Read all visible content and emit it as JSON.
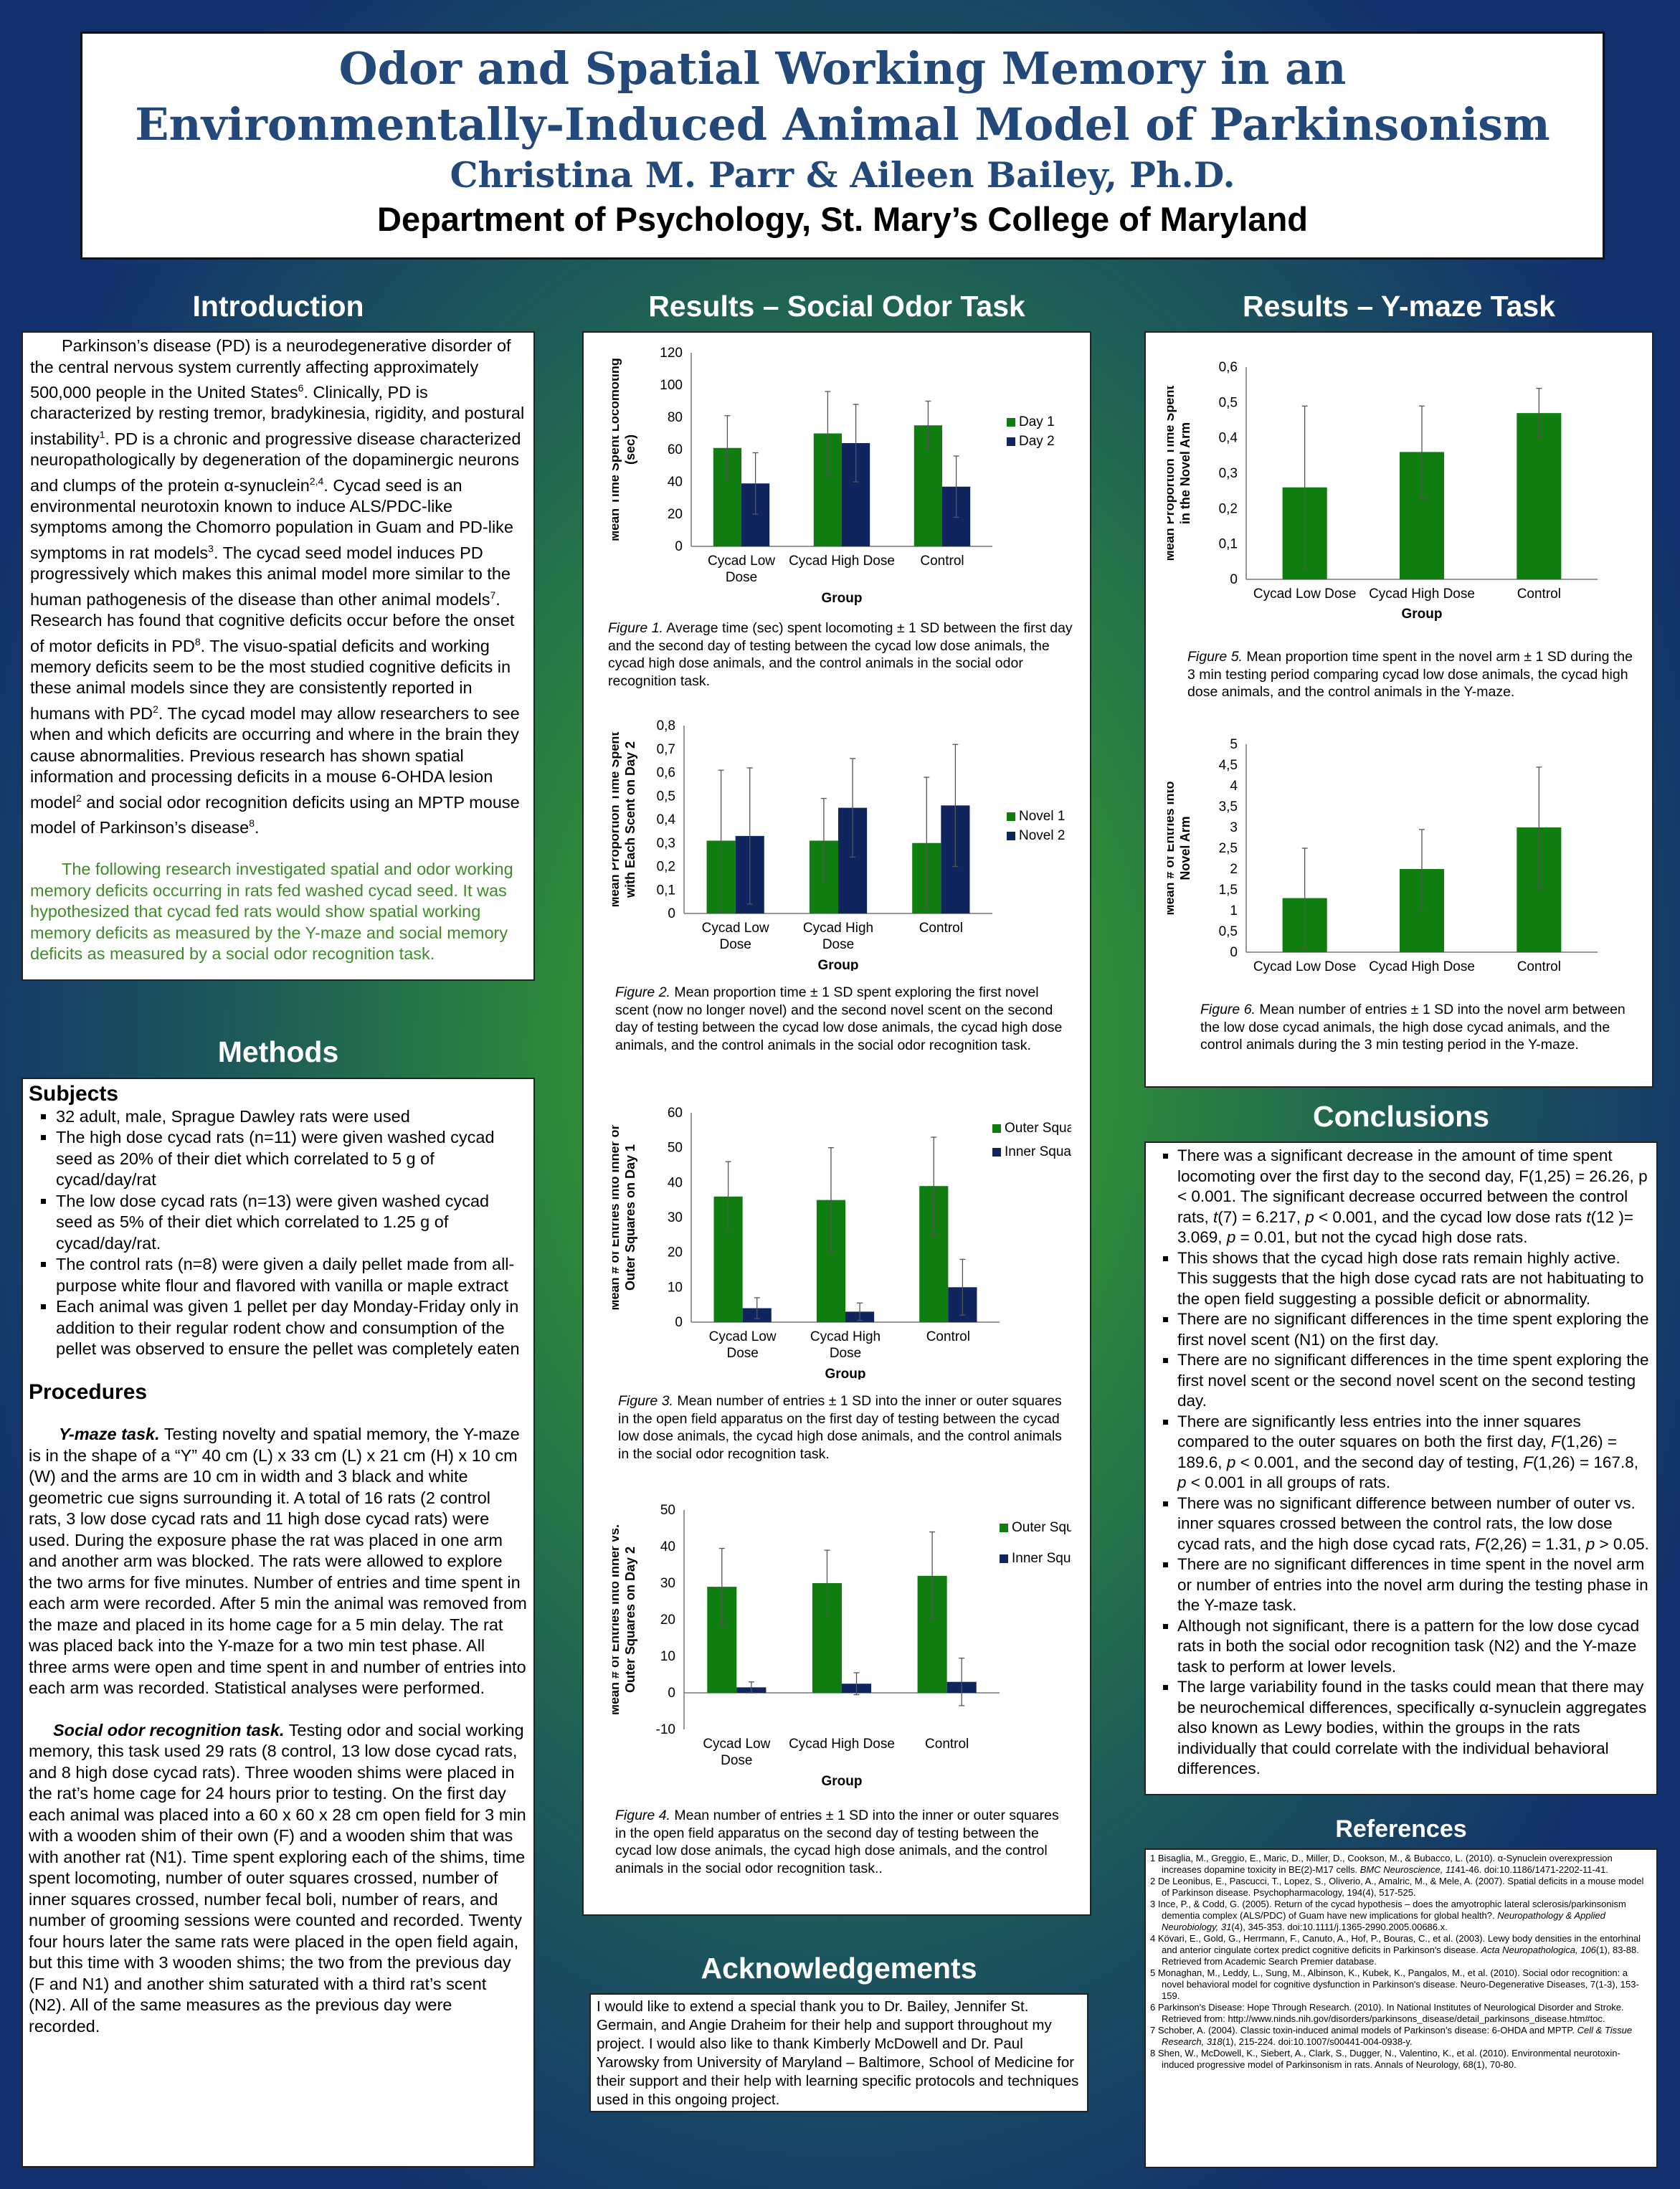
{
  "header": {
    "title_line1": "Odor and Spatial Working Memory in an",
    "title_line2": "Environmentally-Induced Animal Model of Parkinsonism",
    "authors": "Christina M. Parr & Aileen Bailey, Ph.D.",
    "department": "Department of Psychology, St. Mary’s College of Maryland"
  },
  "sections": {
    "introduction": "Introduction",
    "methods": "Methods",
    "results_social": "Results – Social  Odor  Task",
    "results_ymaze": "Results – Y-maze  Task",
    "conclusions": "Conclusions",
    "references": "References",
    "acknowledgements": "Acknowledgements"
  },
  "introduction": {
    "p1_a": "Parkinson’s disease (PD) is a neurodegenerative disorder of the central nervous system currently affecting approximately 500,000 people in the United States",
    "p1_a_sup": "6",
    "p1_b": ".  Clinically, PD is characterized by resting tremor, bradykinesia, rigidity, and postural instability",
    "p1_b_sup": "1",
    "p1_c": ".  PD is a chronic and progressive disease characterized neuropathologically by degeneration of the dopaminergic neurons and clumps of the protein α-synuclein",
    "p1_c_sup": "2,4",
    "p1_d": ".  Cycad seed is an environmental neurotoxin known to induce ALS/PDC-like symptoms among the Chomorro population in Guam and PD-like symptoms in rat models",
    "p1_d_sup": "3",
    "p1_e": ".  The cycad seed model induces PD progressively which makes this animal model more similar to the human pathogenesis of the disease than other animal models",
    "p1_e_sup": "7",
    "p1_f": ".  Research has found that cognitive deficits occur before the onset of motor deficits in PD",
    "p1_f_sup": "8",
    "p1_g": ".  The visuo-spatial deficits and working memory deficits seem to be the most studied cognitive deficits in these animal models since they are consistently reported in humans with PD",
    "p1_g_sup": "2",
    "p1_h": ". The cycad model may allow researchers to see when and which deficits are occurring and where in the brain they cause abnormalities.  Previous research  has shown spatial information and processing deficits in a mouse 6-OHDA lesion model",
    "p1_h_sup": "2",
    "p1_i": " and social odor recognition deficits using an MPTP mouse model of Parkinson’s disease",
    "p1_i_sup": "8",
    "p1_j": ".",
    "p2": "The following research investigated spatial and odor working memory deficits occurring in rats fed washed cycad seed.  It was hypothesized that cycad fed rats would show spatial working memory deficits as measured by the Y-maze and social memory deficits as measured by a social odor recognition task."
  },
  "methods": {
    "subjects_heading": "Subjects",
    "subjects": [
      "32 adult, male, Sprague Dawley rats were used",
      "The high dose cycad rats (n=11) were given washed cycad seed as 20% of their diet which correlated to 5 g of cycad/day/rat",
      "The low dose cycad rats (n=13) were given washed cycad seed as 5% of their diet which correlated to 1.25 g of cycad/day/rat.",
      "The control rats (n=8) were given a daily pellet made from all-purpose white flour and flavored with vanilla or maple extract",
      "Each animal was given 1 pellet per day Monday-Friday only in addition to their regular rodent chow and consumption of the pellet was observed to ensure the pellet was completely eaten"
    ],
    "procedures_heading": "Procedures",
    "ymaze_label": "Y-maze task.",
    "ymaze_text": "  Testing novelty and spatial memory, the Y-maze is in the shape of a “Y” 40 cm (L) x 33 cm (L) x 21 cm (H) x 10 cm (W) and the arms are 10 cm in width and 3 black and white geometric cue signs surrounding it.  A total of 16 rats (2 control rats, 3 low dose cycad rats and 11 high dose cycad rats) were used.  During the exposure phase the rat was placed in one arm and another arm was blocked.  The rats were allowed to explore the two arms for five minutes.  Number of entries and time spent in each arm were recorded.  After 5 min the animal was removed from the maze and placed in its home cage for a 5 min delay. The rat was placed back into the Y-maze for a two min test phase.  All three arms were open and time spent in and number of entries into each arm was recorded.  Statistical analyses were performed.",
    "social_label": "Social odor recognition task.",
    "social_text": "  Testing odor and social working memory, this task used 29 rats (8 control, 13 low dose cycad rats, and 8 high dose cycad rats).  Three wooden shims were placed in the rat’s home cage for 24 hours prior to testing.  On the first day each animal was placed into a 60 x 60 x 28 cm open field for 3 min with a wooden shim of their own (F) and a wooden shim that was with another rat (N1). Time spent exploring each of the shims, time spent locomoting, number of outer squares crossed, number of inner squares crossed, number fecal boli, number of rears, and number of grooming sessions were counted and recorded.  Twenty four hours later the same rats were placed in the open field again, but this time with 3 wooden shims; the two from the previous day (F and N1) and another shim saturated with a third rat’s scent (N2).  All of the same measures as the previous day were recorded."
  },
  "captions": {
    "fig1_label": "Figure 1.",
    "fig1_text": "  Average time (sec) spent locomoting ± 1 SD between the first day and the second day of testing between the cycad low dose animals, the cycad high dose animals, and the control animals in the social odor recognition task.",
    "fig2_label": "Figure 2.",
    "fig2_text": "  Mean proportion time ± 1 SD spent exploring the first novel scent (now no longer novel) and the second novel scent on the second day of testing between the cycad low dose animals, the cycad high dose animals, and the control animals in the social odor recognition task.",
    "fig3_label": "Figure 3.",
    "fig3_text": "  Mean number of entries ± 1 SD into the inner or outer squares in the open field apparatus on the first day of testing between the cycad low dose animals, the cycad high dose animals, and the control animals in the social odor recognition task.",
    "fig4_label": "Figure 4.",
    "fig4_text": "  Mean number of entries ± 1 SD into the inner or outer squares in the open field apparatus on the second day of testing between the cycad low dose animals, the cycad high dose animals, and the control animals in the social odor recognition task..",
    "fig5_label": "Figure 5.",
    "fig5_text": "  Mean proportion time spent in the novel arm ± 1 SD during the 3 min testing period comparing cycad low dose animals, the cycad high dose animals, and the control animals in the Y-maze.",
    "fig6_label": "Figure 6.",
    "fig6_text": "  Mean number of entries ± 1 SD into the novel arm between the low dose cycad animals, the high dose cycad animals, and the control animals during the 3 min testing period in the Y-maze."
  },
  "chart_data": [
    {
      "type": "bar",
      "categories": [
        "Cycad Low Dose",
        "Cycad High Dose",
        "Control"
      ],
      "series": [
        {
          "name": "Day 1",
          "values": [
            61,
            70,
            75
          ],
          "errors": [
            20,
            26,
            15
          ],
          "color": "#0f7d0f"
        },
        {
          "name": "Day 2",
          "values": [
            39,
            64,
            37
          ],
          "errors": [
            19,
            24,
            19
          ],
          "color": "#10255e"
        }
      ],
      "xlabel": "Group",
      "ylabel": "Mean Time Spent Locomoting (sec)",
      "ylim": [
        0,
        120
      ],
      "yticks": [
        0,
        20,
        40,
        60,
        80,
        100,
        120
      ],
      "legend": "right"
    },
    {
      "type": "bar",
      "categories": [
        "Cycad Low Dose",
        "Cycad High Dose",
        "Control"
      ],
      "series": [
        {
          "name": "Novel 1",
          "values": [
            0.31,
            0.31,
            0.3
          ],
          "errors": [
            0.3,
            0.18,
            0.28
          ],
          "color": "#0f7d0f"
        },
        {
          "name": "Novel 2",
          "values": [
            0.33,
            0.45,
            0.46
          ],
          "errors": [
            0.29,
            0.21,
            0.26
          ],
          "color": "#10255e"
        }
      ],
      "xlabel": "Group",
      "ylabel": "Mean Proportion Time Spent with Each Scent on Day 2",
      "ylim": [
        0,
        0.8
      ],
      "yticks": [
        "0",
        "0,1",
        "0,2",
        "0,3",
        "0,4",
        "0,5",
        "0,6",
        "0,7",
        "0,8"
      ],
      "legend": "right"
    },
    {
      "type": "bar",
      "categories": [
        "Cycad Low Dose",
        "Cycad High Dose",
        "Control"
      ],
      "series": [
        {
          "name": "Outer Squares",
          "values": [
            36,
            35,
            39
          ],
          "errors": [
            10,
            15,
            14
          ],
          "color": "#0f7d0f"
        },
        {
          "name": "Inner Squares",
          "values": [
            4,
            3,
            10
          ],
          "errors": [
            3,
            2.5,
            8
          ],
          "color": "#10255e"
        }
      ],
      "xlabel": "Group",
      "ylabel": "Mean # of Entries into Inner or Outer Squares on Day 1",
      "ylim": [
        0,
        60
      ],
      "yticks": [
        0,
        10,
        20,
        30,
        40,
        50,
        60
      ],
      "legend": "top-right"
    },
    {
      "type": "bar",
      "categories": [
        "Cycad Low Dose",
        "Cycad High Dose",
        "Control"
      ],
      "series": [
        {
          "name": "Outer Squares",
          "values": [
            29,
            30,
            32
          ],
          "errors": [
            10.5,
            9,
            12
          ],
          "color": "#0f7d0f"
        },
        {
          "name": "Inner Squares",
          "values": [
            1.5,
            2.5,
            3
          ],
          "errors": [
            1.5,
            3,
            6.5
          ],
          "color": "#10255e"
        }
      ],
      "xlabel": "Group",
      "ylabel": "Mean # of Entries into Inner vs. Outer Squares on Day 2",
      "ylim": [
        -10,
        50
      ],
      "yticks": [
        -10,
        0,
        10,
        20,
        30,
        40,
        50
      ],
      "legend": "top-right"
    },
    {
      "type": "bar",
      "categories": [
        "Cycad Low Dose",
        "Cycad High Dose",
        "Control"
      ],
      "series": [
        {
          "values": [
            0.26,
            0.36,
            0.47
          ],
          "errors": [
            0.23,
            0.13,
            0.07
          ],
          "color": "#0f7d0f"
        }
      ],
      "xlabel": "Group",
      "ylabel": "Mean Proportion Time Spent in the Novel Arm",
      "ylim": [
        0,
        0.6
      ],
      "yticks": [
        "0",
        "0,1",
        "0,2",
        "0,3",
        "0,4",
        "0,5",
        "0,6"
      ]
    },
    {
      "type": "bar",
      "categories": [
        "Cycad Low Dose",
        "Cycad High Dose",
        "Control"
      ],
      "series": [
        {
          "values": [
            1.3,
            2.0,
            3.0
          ],
          "errors": [
            1.2,
            0.95,
            1.45
          ],
          "color": "#0f7d0f"
        }
      ],
      "xlabel": "",
      "ylabel": "Mean # of Entries into Novel Arm",
      "ylim": [
        0,
        5
      ],
      "yticks": [
        "0",
        "0,5",
        "1",
        "1,5",
        "2",
        "2,5",
        "3",
        "3,5",
        "4",
        "4,5",
        "5"
      ]
    }
  ],
  "conclusions": [
    {
      "parts": [
        "There was a significant decrease in the amount of time spent locomoting over the first day to the second day, F(1,25) = 26.26, p < 0.001.  The significant decrease occurred between the control rats, ",
        {
          "i": "t"
        },
        "(7) = 6.217, ",
        {
          "i": "p"
        },
        " < 0.001, and the cycad low dose rats ",
        {
          "i": "t"
        },
        "(12 )= 3.069, ",
        {
          "i": "p"
        },
        " = 0.01, but not the cycad high dose rats."
      ]
    },
    {
      "parts": [
        "This shows that the cycad high dose rats remain highly active.  This suggests that the high dose cycad rats are not habituating to the open field suggesting a possible deficit or abnormality."
      ]
    },
    {
      "parts": [
        "There are no significant differences in the time spent exploring the first novel scent (N1) on the first day."
      ]
    },
    {
      "parts": [
        "There are no significant differences in the time spent exploring the first novel scent or the second novel scent on the second testing day."
      ]
    },
    {
      "parts": [
        "There are significantly less entries into the inner squares compared to the outer squares on both the first day, ",
        {
          "i": "F"
        },
        "(1,26) = 189.6, ",
        {
          "i": "p"
        },
        " < 0.001, and the second day of testing, ",
        {
          "i": "F"
        },
        "(1,26) = 167.8, ",
        {
          "i": "p"
        },
        " < 0.001 in all groups of rats."
      ]
    },
    {
      "parts": [
        "There was no significant difference between number of outer vs. inner squares crossed between the control rats, the low dose cycad rats, and the high dose cycad rats, ",
        {
          "i": "F"
        },
        "(2,26) = 1.31, ",
        {
          "i": "p"
        },
        " > 0.05."
      ]
    },
    {
      "parts": [
        "There are no significant differences in time spent in the novel arm or number of entries into the novel arm during the testing phase in the Y-maze task."
      ]
    },
    {
      "parts": [
        "Although not significant, there is a pattern for the low dose cycad rats in both the social odor recognition task (N2) and the Y-maze task to perform at lower levels."
      ]
    },
    {
      "parts": [
        "The large variability found in the tasks could mean that there may be neurochemical differences, specifically α-synuclein aggregates also known as Lewy bodies, within the groups in the rats individually that could correlate with the individual behavioral differences."
      ]
    }
  ],
  "references": [
    {
      "parts": [
        "1 Bisaglia, M., Greggio, E., Maric, D., Miller, D., Cookson, M., & Bubacco, L. (2010). α-Synuclein overexpression increases dopamine toxicity in BE(2)-M17 cells. ",
        {
          "i": "BMC Neuroscience, 11"
        },
        "41-46. doi:10.1186/1471-2202-11-41."
      ]
    },
    {
      "parts": [
        "2 De Leonibus, E., Pascucci, T., Lopez, S., Oliverio, A., Amalric, M., & Mele, A. (2007). Spatial deficits in a mouse model of Parkinson disease. Psychopharmacology, 194(4), 517-525."
      ]
    },
    {
      "parts": [
        "3 Ince, P., & Codd, G. (2005). Return of the cycad hypothesis – does the amyotrophic lateral sclerosis/parkinsonism dementia complex (ALS/PDC) of Guam have new implications for global health?. ",
        {
          "i": "Neuropathology & Applied Neurobiology, 31"
        },
        "(4), 345-353. doi:10.1111/j.1365-2990.2005.00686.x."
      ]
    },
    {
      "parts": [
        "4 Kövari, E., Gold, G., Herrmann, F., Canuto, A., Hof, P., Bouras, C., et al. (2003). Lewy body densities in the entorhinal and anterior cingulate cortex predict cognitive deficits in Parkinson's disease. ",
        {
          "i": "Acta Neuropathologica, 106"
        },
        "(1), 83-88. Retrieved from Academic Search Premier database."
      ]
    },
    {
      "parts": [
        "5 Monaghan, M., Leddy, L., Sung, M., Albinson, K., Kubek, K., Pangalos, M., et al. (2010). Social odor recognition: a novel behavioral model for cognitive dysfunction in Parkinson's disease. Neuro-Degenerative Diseases, 7(1-3), 153-159."
      ]
    },
    {
      "parts": [
        "6 Parkinson's Disease: Hope Through Research.  (2010).  In National Institutes of Neurological Disorder and Stroke.  Retrieved from: http://www.ninds.nih.gov/disorders/parkinsons_disease/detail_parkinsons_disease.htm#toc."
      ]
    },
    {
      "parts": [
        "7 Schober, A. (2004). Classic toxin-induced animal models of Parkinson’s disease: 6-OHDA and MPTP. ",
        {
          "i": "Cell & Tissue Research, 318"
        },
        "(1), 215-224. doi:10.1007/s00441-004-0938-y."
      ]
    },
    {
      "parts": [
        "8 Shen, W., McDowell, K., Siebert, A., Clark, S., Dugger, N., Valentino, K., et al. (2010). Environmental neurotoxin-induced progressive model of Parkinsonism in rats. Annals of Neurology, 68(1), 70-80."
      ]
    }
  ],
  "acknowledgements": "I would like to extend a special thank you to Dr. Bailey, Jennifer St. Germain, and Angie Draheim for their help and support throughout my project.  I would also like to thank Kimberly McDowell and Dr. Paul Yarowsky from University of Maryland – Baltimore, School of Medicine for their support and their help with learning specific protocols and techniques used in this ongoing project."
}
